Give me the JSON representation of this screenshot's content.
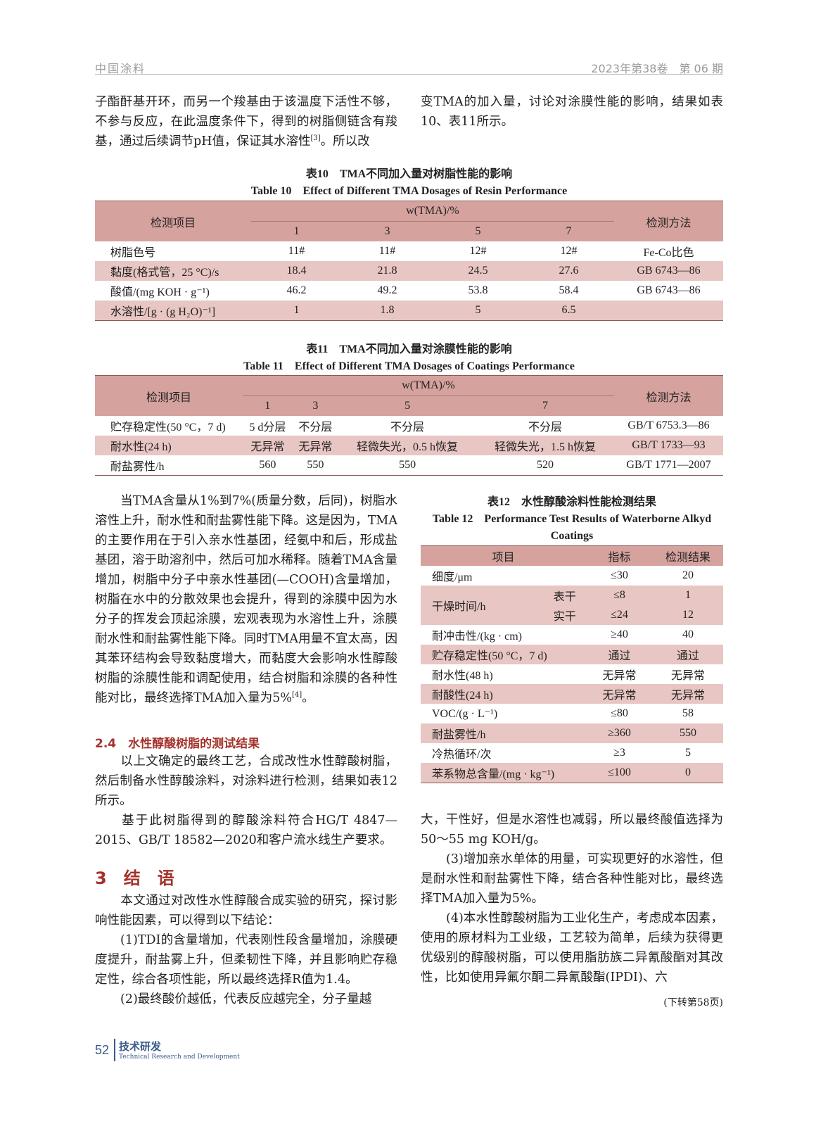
{
  "header": {
    "journal": "中国涂料",
    "issue": "2023年第38卷　第 06 期"
  },
  "top_left": {
    "before": "子酯酐基开环，而另一个羧基由于该温度下活性不够，不参与反应，在此温度条件下，得到的树脂侧链含有羧基，通过后续调节pH值，保证其水溶性",
    "ref": "[3]",
    "after": "。所以改"
  },
  "top_right": "变TMA的加入量，讨论对涂膜性能的影响，结果如表10、表11所示。",
  "table10": {
    "caption_cn": "表10　TMA不同加入量对树脂性能的影响",
    "caption_en": "Table 10　Effect of Different TMA Dosages of Resin Performance",
    "col_item": "检测项目",
    "col_group": "w(TMA)/%",
    "col_method": "检测方法",
    "doses": [
      "1",
      "3",
      "5",
      "7"
    ],
    "rows": [
      {
        "item": "树脂色号",
        "values": [
          "11#",
          "11#",
          "12#",
          "12#"
        ],
        "method": "Fe-Co比色"
      },
      {
        "item": "黏度(格式管，25 °C)/s",
        "values": [
          "18.4",
          "21.8",
          "24.5",
          "27.6"
        ],
        "method": "GB 6743—86"
      },
      {
        "item": "酸值/(mg KOH · g⁻¹)",
        "values": [
          "46.2",
          "49.2",
          "53.8",
          "58.4"
        ],
        "method": "GB 6743—86"
      },
      {
        "item": "水溶性/[g · (g H₂O)⁻¹]",
        "values": [
          "1",
          "1.8",
          "5",
          "6.5"
        ],
        "method": ""
      }
    ]
  },
  "table11": {
    "caption_cn": "表11　TMA不同加入量对涂膜性能的影响",
    "caption_en": "Table 11　Effect of Different TMA Dosages of Coatings Performance",
    "col_item": "检测项目",
    "col_group": "w(TMA)/%",
    "col_method": "检测方法",
    "doses": [
      "1",
      "3",
      "5",
      "7"
    ],
    "rows": [
      {
        "item": "贮存稳定性(50 °C，7 d)",
        "values": [
          "5 d分层",
          "不分层",
          "不分层",
          "不分层"
        ],
        "method": "GB/T 6753.3—86"
      },
      {
        "item": "耐水性(24 h)",
        "values": [
          "无异常",
          "无异常",
          "轻微失光，0.5 h恢复",
          "轻微失光，1.5 h恢复"
        ],
        "method": "GB/T 1733—93"
      },
      {
        "item": "耐盐雾性/h",
        "values": [
          "560",
          "550",
          "550",
          "520"
        ],
        "method": "GB/T 1771—2007"
      }
    ]
  },
  "left_para1": {
    "before": "当TMA含量从1%到7%(质量分数，后同)，树脂水溶性上升，耐水性和耐盐雾性能下降。这是因为，TMA的主要作用在于引入亲水性基团，经氨中和后，形成盐基团，溶于助溶剂中，然后可加水稀释。随着TMA含量增加，树脂中分子中亲水性基团(—COOH)含量增加，树脂在水中的分散效果也会提升，得到的涂膜中因为水分子的挥发会顶起涂膜，宏观表现为水溶性上升，涂膜耐水性和耐盐雾性能下降。同时TMA用量不宜太高，因其苯环结构会导致黏度增大，而黏度大会影响水性醇酸树脂的涂膜性能和调配使用，结合树脂和涂膜的各种性能对比，最终选择TMA加入量为5%",
    "ref": "[4]",
    "after": "。"
  },
  "section_2_4": {
    "number": "2.4",
    "title": "水性醇酸树脂的测试结果"
  },
  "left_para2": "以上文确定的最终工艺，合成改性水性醇酸树脂，然后制备水性醇酸涂料，对涂料进行检测，结果如表12所示。",
  "left_para3": "基于此树脂得到的醇酸涂料符合HG/T 4847—2015、GB/T 18582—2020和客户流水线生产要求。",
  "section_3": {
    "number": "3",
    "title": "结　语"
  },
  "left_para4": "本文通过对改性水性醇酸合成实验的研究，探讨影响性能因素，可以得到以下结论：",
  "left_para5": "(1)TDI的含量增加，代表刚性段含量增加，涂膜硬度提升，耐盐雾上升，但柔韧性下降，并且影响贮存稳定性，综合各项性能，所以最终选择R值为1.4。",
  "left_para6": "(2)最终酸价越低，代表反应越完全，分子量越",
  "table12": {
    "caption_cn": "表12　水性醇酸涂料性能检测结果",
    "caption_en": "Table 12　Performance Test Results of Waterborne Alkyd Coatings",
    "col_item": "项目",
    "col_index": "指标",
    "col_result": "检测结果",
    "rows": [
      {
        "item": "细度/μm",
        "index": "≤30",
        "result": "20"
      },
      {
        "item": "干燥时间/h",
        "sub": [
          {
            "label": "表干",
            "index": "≤8",
            "result": "1"
          },
          {
            "label": "实干",
            "index": "≤24",
            "result": "12"
          }
        ]
      },
      {
        "item": "耐冲击性/(kg · cm)",
        "index": "≥40",
        "result": "40"
      },
      {
        "item": "贮存稳定性(50 °C，7 d)",
        "index": "通过",
        "result": "通过"
      },
      {
        "item": "耐水性(48 h)",
        "index": "无异常",
        "result": "无异常"
      },
      {
        "item": "耐酸性(24 h)",
        "index": "无异常",
        "result": "无异常"
      },
      {
        "item": "VOC/(g · L⁻¹)",
        "index": "≤80",
        "result": "58"
      },
      {
        "item": "耐盐雾性/h",
        "index": "≥360",
        "result": "550"
      },
      {
        "item": "冷热循环/次",
        "index": "≥3",
        "result": "5"
      },
      {
        "item": "苯系物总含量/(mg · kg⁻¹)",
        "index": "≤100",
        "result": "0"
      }
    ]
  },
  "right_para1": "大，干性好，但是水溶性也减弱，所以最终酸值选择为50～55 mg KOH/g。",
  "right_para2": "(3)增加亲水单体的用量，可实现更好的水溶性，但是耐水性和耐盐雾性下降，结合各种性能对比，最终选择TMA加入量为5%。",
  "right_para3": "(4)本水性醇酸树脂为工业化生产，考虑成本因素，使用的原材料为工业级，工艺较为简单，后续为获得更优级别的醇酸树脂，可以使用脂肪族二异氰酸酯对其改性，比如使用异氟尔酮二异氰酸酯(IPDI)、六",
  "continued": "(下转第58页)",
  "footer": {
    "page": "52",
    "section_cn": "技术研发",
    "section_en": "Technical Research and Development"
  },
  "colors": {
    "table_header": "#d5a29e",
    "table_alt_row": "#e8c6c3",
    "heading": "#a3322b"
  }
}
